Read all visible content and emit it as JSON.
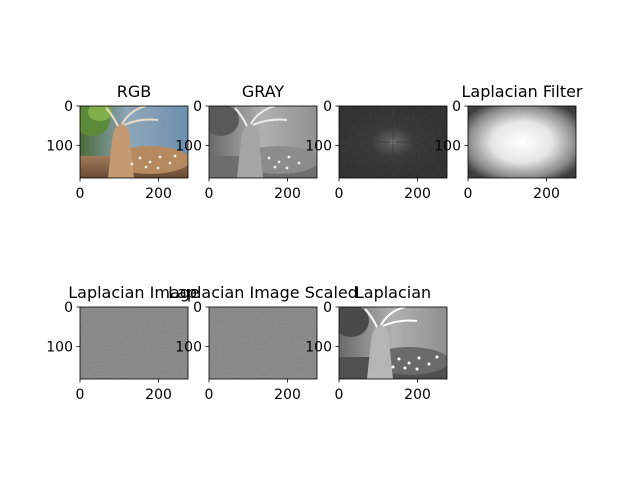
{
  "chart_data": {
    "type": "image-grid",
    "rows": 2,
    "cols": 4,
    "panels": [
      {
        "title": "RGB",
        "image": "color-photo-spotted-deer",
        "xticks": [
          "0",
          "200"
        ],
        "yticks": [
          "0",
          "100"
        ],
        "xlim": [
          0,
          275
        ],
        "ylim": [
          183,
          0
        ],
        "xtick_values": [
          0,
          200
        ],
        "ytick_values": [
          0,
          100
        ]
      },
      {
        "title": "GRAY",
        "image": "grayscale-photo-spotted-deer",
        "xticks": [
          "0",
          "200"
        ],
        "yticks": [
          "0",
          "100"
        ],
        "xlim": [
          0,
          275
        ],
        "ylim": [
          183,
          0
        ],
        "xtick_values": [
          0,
          200
        ],
        "ytick_values": [
          0,
          100
        ]
      },
      {
        "title": "",
        "image": "fourier-magnitude-spectrum",
        "xticks": [
          "0",
          "200"
        ],
        "yticks": [
          "0",
          "100"
        ],
        "xlim": [
          0,
          275
        ],
        "ylim": [
          183,
          0
        ],
        "xtick_values": [
          0,
          200
        ],
        "ytick_values": [
          0,
          100
        ]
      },
      {
        "title": "Laplacian Filter",
        "image": "radial-laplacian-filter-bright-center",
        "xticks": [
          "0",
          "200"
        ],
        "yticks": [
          "0",
          "100"
        ],
        "xlim": [
          0,
          275
        ],
        "ylim": [
          183,
          0
        ],
        "xtick_values": [
          0,
          200
        ],
        "ytick_values": [
          0,
          100
        ]
      },
      {
        "title": "Laplacian Image",
        "image": "flat-gray-noise",
        "xticks": [
          "0",
          "200"
        ],
        "yticks": [
          "0",
          "100"
        ],
        "xlim": [
          0,
          275
        ],
        "ylim": [
          183,
          0
        ],
        "xtick_values": [
          0,
          200
        ],
        "ytick_values": [
          0,
          100
        ]
      },
      {
        "title": "Laplacian Image Scaled",
        "image": "flat-gray-noise",
        "xticks": [
          "0",
          "200"
        ],
        "yticks": [
          "0",
          "100"
        ],
        "xlim": [
          0,
          275
        ],
        "ylim": [
          183,
          0
        ],
        "xtick_values": [
          0,
          200
        ],
        "ytick_values": [
          0,
          100
        ]
      },
      {
        "title": "Laplacian",
        "image": "grayscale-sharpened-deer",
        "xticks": [
          "0",
          "200"
        ],
        "yticks": [
          "0",
          "100"
        ],
        "xlim": [
          0,
          275
        ],
        "ylim": [
          183,
          0
        ],
        "xtick_values": [
          0,
          200
        ],
        "ytick_values": [
          0,
          100
        ]
      }
    ]
  }
}
